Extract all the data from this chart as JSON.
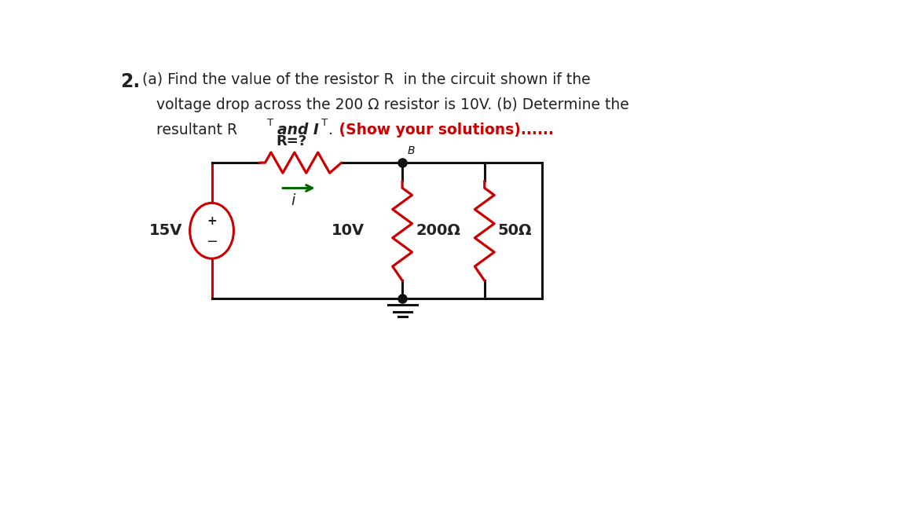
{
  "bg_color": "#ffffff",
  "circuit_color": "#cc0000",
  "wire_color": "#111111",
  "arrow_color": "#006600",
  "text_color": "#222222",
  "red_text_color": "#cc0000",
  "voltage_label": "15V",
  "resistor_R_label": "R=?",
  "current_label": "i",
  "voltage_drop_label": "10V",
  "res1_label": "200Ω",
  "res2_label": "50Ω",
  "node_label": "B",
  "line1": "(a) Find the value of the resistor R  in the circuit shown if the",
  "line2": "   voltage drop across the 200 Ω resistor is 10V. (b) Determine the",
  "line3_pre": "   resultant R",
  "line3_T1": "T",
  "line3_and": "and I",
  "line3_T2": "T",
  "line3_dot": ".",
  "line3_red": " (Show your solutions)......",
  "fig_w": 11.52,
  "fig_h": 6.48,
  "dpi": 100
}
